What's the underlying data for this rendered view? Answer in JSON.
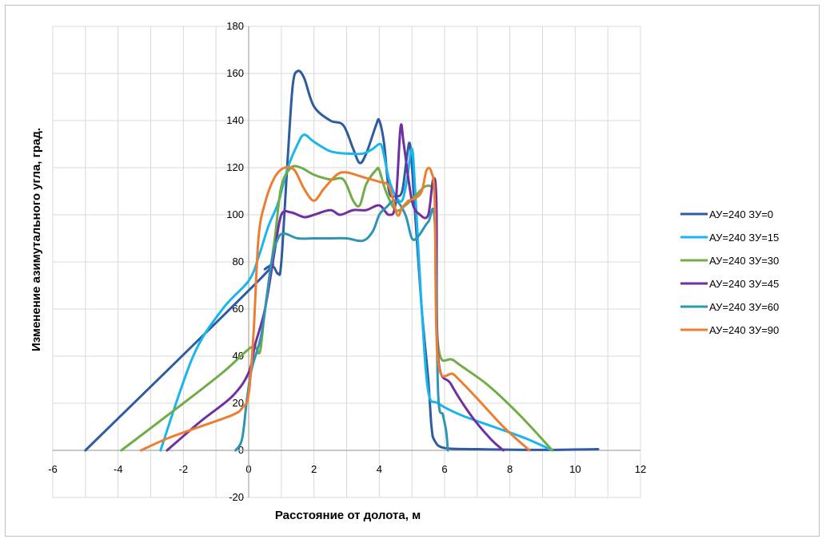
{
  "chart_data": {
    "type": "line",
    "title": "",
    "xlabel": "Расстояние от долота, м",
    "ylabel": "Изменение азимутального угла,  град.",
    "xlim": [
      -6,
      12
    ],
    "ylim": [
      -20,
      180
    ],
    "xticks": [
      -6,
      -4,
      -2,
      0,
      2,
      4,
      6,
      8,
      10,
      12
    ],
    "yticks": [
      -20,
      0,
      20,
      40,
      60,
      80,
      100,
      120,
      140,
      160,
      180
    ],
    "grid": true,
    "legend_position": "right",
    "series": [
      {
        "name": "АУ=240 ЗУ=0",
        "color": "#2e5c9e",
        "points": [
          [
            -5.0,
            0
          ],
          [
            0.3,
            72
          ],
          [
            0.5,
            77
          ],
          [
            0.75,
            78
          ],
          [
            0.9,
            75
          ],
          [
            1.0,
            80
          ],
          [
            1.2,
            125
          ],
          [
            1.35,
            155
          ],
          [
            1.5,
            161
          ],
          [
            1.7,
            158
          ],
          [
            2.0,
            146
          ],
          [
            2.5,
            140
          ],
          [
            2.9,
            138
          ],
          [
            3.2,
            128
          ],
          [
            3.4,
            122
          ],
          [
            3.6,
            126
          ],
          [
            3.9,
            138
          ],
          [
            4.0,
            140
          ],
          [
            4.15,
            130
          ],
          [
            4.3,
            110
          ],
          [
            4.5,
            108
          ],
          [
            4.7,
            110
          ],
          [
            4.85,
            125
          ],
          [
            4.95,
            129
          ],
          [
            5.1,
            100
          ],
          [
            5.3,
            60
          ],
          [
            5.5,
            30
          ],
          [
            5.6,
            10
          ],
          [
            5.7,
            4
          ],
          [
            6.0,
            1
          ],
          [
            7.0,
            0.5
          ],
          [
            9.0,
            0.2
          ],
          [
            10.7,
            0.5
          ]
        ]
      },
      {
        "name": "АУ=240 ЗУ=15",
        "color": "#19b5f0",
        "points": [
          [
            -2.7,
            0
          ],
          [
            -1.7,
            40
          ],
          [
            -0.8,
            60
          ],
          [
            0.0,
            72
          ],
          [
            0.3,
            82
          ],
          [
            0.6,
            95
          ],
          [
            0.9,
            105
          ],
          [
            1.2,
            120
          ],
          [
            1.5,
            130
          ],
          [
            1.7,
            134
          ],
          [
            2.0,
            131
          ],
          [
            2.5,
            127
          ],
          [
            3.0,
            126
          ],
          [
            3.5,
            126
          ],
          [
            3.8,
            128
          ],
          [
            4.0,
            130
          ],
          [
            4.1,
            128
          ],
          [
            4.3,
            115
          ],
          [
            4.5,
            108
          ],
          [
            4.7,
            106
          ],
          [
            4.85,
            115
          ],
          [
            5.0,
            128
          ],
          [
            5.1,
            110
          ],
          [
            5.3,
            60
          ],
          [
            5.5,
            25
          ],
          [
            5.8,
            20
          ],
          [
            6.5,
            15
          ],
          [
            7.5,
            10
          ],
          [
            8.5,
            5
          ],
          [
            9.3,
            0
          ]
        ]
      },
      {
        "name": "АУ=240 ЗУ=30",
        "color": "#70ad47",
        "points": [
          [
            -3.9,
            0
          ],
          [
            -2.0,
            20
          ],
          [
            -0.8,
            33
          ],
          [
            0.0,
            43
          ],
          [
            0.2,
            44
          ],
          [
            0.35,
            42
          ],
          [
            0.5,
            60
          ],
          [
            0.8,
            90
          ],
          [
            1.0,
            112
          ],
          [
            1.3,
            120
          ],
          [
            1.6,
            120
          ],
          [
            2.0,
            117
          ],
          [
            2.5,
            115
          ],
          [
            2.9,
            115
          ],
          [
            3.2,
            106
          ],
          [
            3.4,
            104
          ],
          [
            3.6,
            113
          ],
          [
            3.9,
            119
          ],
          [
            4.0,
            119
          ],
          [
            4.2,
            110
          ],
          [
            4.5,
            102
          ],
          [
            4.8,
            104
          ],
          [
            5.1,
            108
          ],
          [
            5.4,
            112
          ],
          [
            5.6,
            112
          ],
          [
            5.7,
            110
          ],
          [
            5.8,
            45
          ],
          [
            6.3,
            38
          ],
          [
            7.3,
            28
          ],
          [
            8.3,
            15
          ],
          [
            9.3,
            0
          ]
        ]
      },
      {
        "name": "АУ=240 ЗУ=45",
        "color": "#7030a0",
        "points": [
          [
            -2.5,
            0
          ],
          [
            -1.5,
            12
          ],
          [
            -0.5,
            23
          ],
          [
            0.0,
            33
          ],
          [
            0.2,
            45
          ],
          [
            0.5,
            60
          ],
          [
            0.8,
            85
          ],
          [
            1.0,
            100
          ],
          [
            1.3,
            101
          ],
          [
            1.7,
            99
          ],
          [
            2.0,
            100
          ],
          [
            2.5,
            102
          ],
          [
            2.8,
            100
          ],
          [
            3.2,
            102
          ],
          [
            3.6,
            102
          ],
          [
            4.0,
            104
          ],
          [
            4.3,
            100
          ],
          [
            4.5,
            105
          ],
          [
            4.65,
            137
          ],
          [
            4.75,
            130
          ],
          [
            5.0,
            106
          ],
          [
            5.25,
            100
          ],
          [
            5.5,
            100
          ],
          [
            5.65,
            115
          ],
          [
            5.75,
            105
          ],
          [
            5.8,
            40
          ],
          [
            6.2,
            28
          ],
          [
            6.8,
            15
          ],
          [
            7.4,
            5
          ],
          [
            7.8,
            0
          ]
        ]
      },
      {
        "name": "АУ=240 ЗУ=60",
        "color": "#2e96b4",
        "points": [
          [
            -0.4,
            0
          ],
          [
            -0.2,
            5
          ],
          [
            -0.05,
            22
          ],
          [
            0.1,
            35
          ],
          [
            0.4,
            50
          ],
          [
            0.7,
            80
          ],
          [
            0.9,
            90
          ],
          [
            1.1,
            92
          ],
          [
            1.5,
            90
          ],
          [
            2.0,
            90
          ],
          [
            2.5,
            90
          ],
          [
            3.0,
            90
          ],
          [
            3.5,
            89
          ],
          [
            3.8,
            93
          ],
          [
            4.0,
            100
          ],
          [
            4.2,
            103
          ],
          [
            4.5,
            106
          ],
          [
            4.8,
            100
          ],
          [
            5.0,
            90
          ],
          [
            5.2,
            91
          ],
          [
            5.5,
            97
          ],
          [
            5.7,
            97
          ],
          [
            5.8,
            25
          ],
          [
            5.95,
            15
          ],
          [
            6.05,
            8
          ],
          [
            6.1,
            0
          ]
        ]
      },
      {
        "name": "АУ=240 ЗУ=90",
        "color": "#ed7d31",
        "points": [
          [
            -3.3,
            0
          ],
          [
            -2.5,
            5
          ],
          [
            -1.5,
            10
          ],
          [
            -0.5,
            15
          ],
          [
            -0.2,
            18
          ],
          [
            0.0,
            24
          ],
          [
            0.15,
            50
          ],
          [
            0.3,
            90
          ],
          [
            0.5,
            105
          ],
          [
            0.8,
            116
          ],
          [
            1.1,
            120
          ],
          [
            1.4,
            119
          ],
          [
            1.7,
            111
          ],
          [
            2.0,
            106
          ],
          [
            2.3,
            111
          ],
          [
            2.7,
            117
          ],
          [
            3.0,
            118
          ],
          [
            3.5,
            116
          ],
          [
            4.0,
            114
          ],
          [
            4.3,
            112
          ],
          [
            4.55,
            100
          ],
          [
            4.7,
            103
          ],
          [
            4.9,
            106
          ],
          [
            5.1,
            107
          ],
          [
            5.3,
            110
          ],
          [
            5.45,
            119
          ],
          [
            5.6,
            118
          ],
          [
            5.7,
            105
          ],
          [
            5.8,
            38
          ],
          [
            6.3,
            32
          ],
          [
            7.0,
            22
          ],
          [
            7.8,
            10
          ],
          [
            8.6,
            0
          ]
        ]
      }
    ]
  }
}
